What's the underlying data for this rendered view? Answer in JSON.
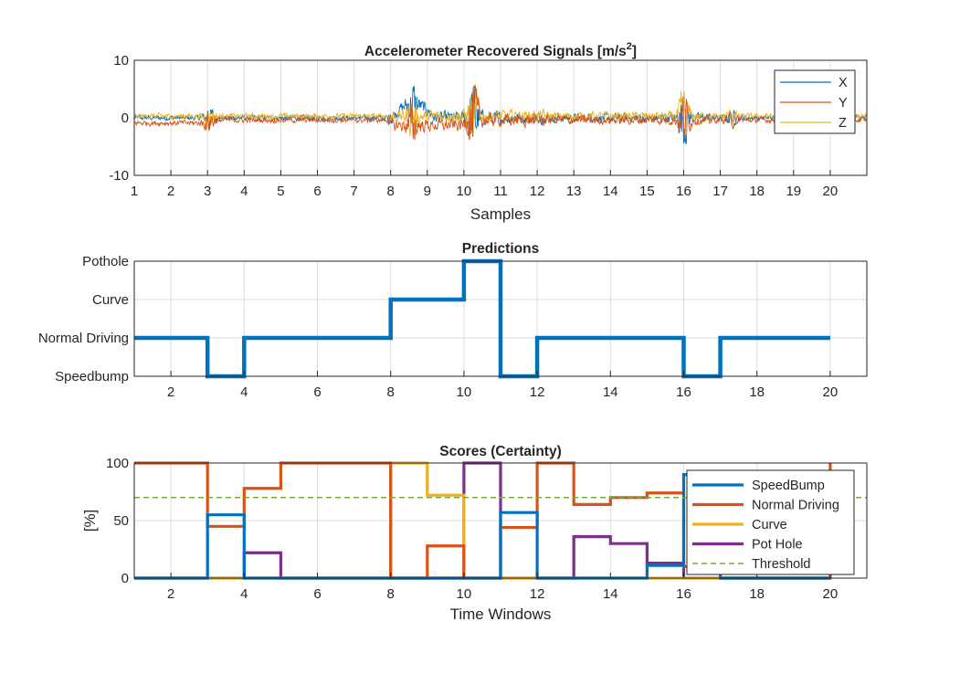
{
  "chart_data": [
    {
      "type": "line",
      "title": "Accelerometer Recovered Signals [m/s",
      "title_sup": "2",
      "title_close": "]",
      "xlabel": "Samples",
      "ylabel": "",
      "xlim": [
        1,
        21
      ],
      "ylim": [
        -10,
        10
      ],
      "xticks": [
        1,
        2,
        3,
        4,
        5,
        6,
        7,
        8,
        9,
        10,
        11,
        12,
        13,
        14,
        15,
        16,
        17,
        18,
        19,
        20
      ],
      "yticks": [
        -10,
        0,
        10
      ],
      "grid": true,
      "legend_position": "top-right",
      "series": [
        {
          "name": "X",
          "color": "#0072BD"
        },
        {
          "name": "Y",
          "color": "#D95319"
        },
        {
          "name": "Z",
          "color": "#EDB120"
        }
      ],
      "events": [
        {
          "x": 3.05,
          "amp": 2.8
        },
        {
          "x": 8.6,
          "amp": 4.5
        },
        {
          "x": 10.25,
          "amp": 9.0
        },
        {
          "x": 16.0,
          "amp": 6.5
        },
        {
          "x": 17.3,
          "amp": 1.5
        }
      ]
    },
    {
      "type": "line",
      "title": "Predictions",
      "xlabel": "",
      "ylabel": "",
      "xlim": [
        1,
        21
      ],
      "ylim": [
        0,
        3
      ],
      "xticks": [
        2,
        4,
        6,
        8,
        10,
        12,
        14,
        16,
        18,
        20
      ],
      "categories": [
        "Speedbump",
        "Normal Driving",
        "Curve",
        "Pothole"
      ],
      "grid": true,
      "series": [
        {
          "name": "",
          "color": "#0072BD",
          "x": [
            1,
            2,
            3,
            4,
            5,
            6,
            7,
            8,
            9,
            10,
            11,
            12,
            13,
            14,
            15,
            16,
            17,
            18,
            19,
            20
          ],
          "values": [
            1,
            1,
            0,
            1,
            1,
            1,
            1,
            2,
            2,
            3,
            0,
            1,
            1,
            1,
            1,
            0,
            1,
            1,
            1,
            1
          ]
        }
      ]
    },
    {
      "type": "line",
      "title": "Scores (Certainty)",
      "xlabel": "Time Windows",
      "ylabel": "[%]",
      "xlim": [
        1,
        21
      ],
      "ylim": [
        0,
        100
      ],
      "xticks": [
        2,
        4,
        6,
        8,
        10,
        12,
        14,
        16,
        18,
        20
      ],
      "yticks": [
        0,
        50,
        100
      ],
      "grid": true,
      "legend_position": "top-right",
      "threshold": 70,
      "series": [
        {
          "name": "SpeedBump",
          "color": "#0072BD",
          "x": [
            1,
            2,
            3,
            4,
            5,
            6,
            7,
            8,
            9,
            10,
            11,
            12,
            13,
            14,
            15,
            16,
            17,
            18,
            19,
            20
          ],
          "values": [
            0,
            0,
            55,
            0,
            0,
            0,
            0,
            0,
            0,
            0,
            57,
            0,
            0,
            0,
            11,
            90,
            0,
            0,
            0,
            0
          ]
        },
        {
          "name": "Normal Driving",
          "color": "#D95319",
          "x": [
            1,
            2,
            3,
            4,
            5,
            6,
            7,
            8,
            9,
            10,
            11,
            12,
            13,
            14,
            15,
            16,
            17,
            18,
            19,
            20
          ],
          "values": [
            100,
            100,
            45,
            78,
            100,
            100,
            100,
            0,
            28,
            0,
            44,
            100,
            64,
            70,
            74,
            10,
            0,
            0,
            0,
            100
          ]
        },
        {
          "name": "Curve",
          "color": "#EDB120",
          "x": [
            1,
            2,
            3,
            4,
            5,
            6,
            7,
            8,
            9,
            10,
            11,
            12,
            13,
            14,
            15,
            16,
            17,
            18,
            19,
            20
          ],
          "values": [
            0,
            0,
            0,
            0,
            0,
            0,
            0,
            100,
            72,
            0,
            0,
            0,
            0,
            0,
            0,
            0,
            0,
            0,
            0,
            0
          ]
        },
        {
          "name": "Pot Hole",
          "color": "#7E2F8E",
          "x": [
            1,
            2,
            3,
            4,
            5,
            6,
            7,
            8,
            9,
            10,
            11,
            12,
            13,
            14,
            15,
            16,
            17,
            18,
            19,
            20
          ],
          "values": [
            0,
            0,
            0,
            22,
            0,
            0,
            0,
            0,
            0,
            100,
            0,
            0,
            36,
            30,
            13,
            0,
            0,
            0,
            0,
            0
          ]
        },
        {
          "name": "Threshold",
          "color": "#77AC30",
          "dashed": true
        }
      ]
    }
  ]
}
